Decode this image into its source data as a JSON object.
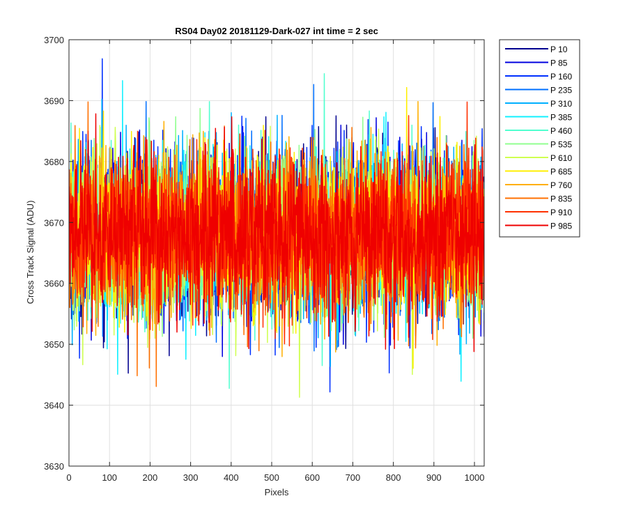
{
  "chart_data": {
    "type": "line",
    "title": "RS04 Day02 20181129-Dark-027 int time = 2 sec",
    "xlabel": "Pixels",
    "ylabel": "Cross Track Signal (ADU)",
    "xlim": [
      0,
      1024
    ],
    "ylim": [
      3630,
      3700
    ],
    "xticks": [
      0,
      100,
      200,
      300,
      400,
      500,
      600,
      700,
      800,
      900,
      1000
    ],
    "yticks": [
      3630,
      3640,
      3650,
      3660,
      3670,
      3680,
      3690,
      3700
    ],
    "grid": true,
    "legend_position": "outside-top-right",
    "sampling_note_points_per_series": 1024,
    "series": [
      {
        "name": "P 10",
        "color": "#00008f",
        "mean": 3668,
        "std": 6.5
      },
      {
        "name": "P 85",
        "color": "#0000df",
        "mean": 3668,
        "std": 6.5
      },
      {
        "name": "P 160",
        "color": "#0030ff",
        "mean": 3668,
        "std": 6.5
      },
      {
        "name": "P 235",
        "color": "#0070ff",
        "mean": 3668,
        "std": 6.5
      },
      {
        "name": "P 310",
        "color": "#00b0ff",
        "mean": 3668,
        "std": 6.5
      },
      {
        "name": "P 385",
        "color": "#10f0ff",
        "mean": 3668,
        "std": 6.5
      },
      {
        "name": "P 460",
        "color": "#50ffcf",
        "mean": 3668,
        "std": 6.5
      },
      {
        "name": "P 535",
        "color": "#90ff8f",
        "mean": 3668,
        "std": 6.5
      },
      {
        "name": "P 610",
        "color": "#cfff50",
        "mean": 3668,
        "std": 6.5
      },
      {
        "name": "P 685",
        "color": "#ffef00",
        "mean": 3668,
        "std": 6.5
      },
      {
        "name": "P 760",
        "color": "#ffaf00",
        "mean": 3668,
        "std": 6.5
      },
      {
        "name": "P 835",
        "color": "#ff7000",
        "mean": 3668,
        "std": 6.5
      },
      {
        "name": "P 910",
        "color": "#ff3000",
        "mean": 3668,
        "std": 6.5
      },
      {
        "name": "P 985",
        "color": "#ef0000",
        "mean": 3668,
        "std": 6.5
      }
    ]
  }
}
